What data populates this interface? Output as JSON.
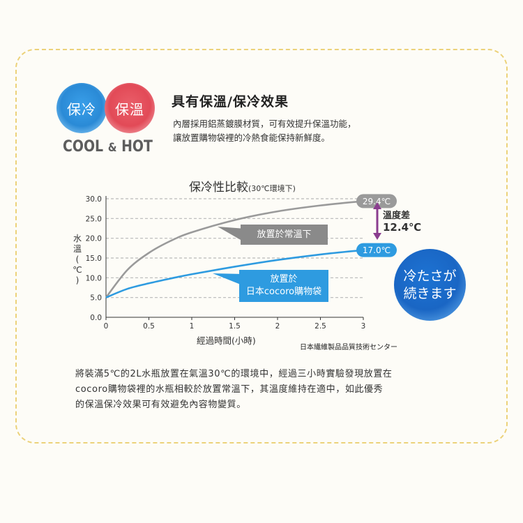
{
  "badges": {
    "cool": "保冷",
    "hot": "保溫",
    "cool_en": "COOL",
    "amp": "&",
    "hot_en": "HOT"
  },
  "header": {
    "title": "具有保溫/保冷效果",
    "desc_line1": "內層採用鋁蒸鍍膜材質，可有效提升保溫功能，",
    "desc_line2": "讓放置購物袋裡的冷熱食能保持新鮮度。"
  },
  "chart_data": {
    "type": "line",
    "title": "保冷性比較",
    "subtitle": "(30℃環境下)",
    "xlabel": "經過時間(小時)",
    "ylabel_chars": [
      "水",
      "溫",
      "(",
      "℃",
      ")"
    ],
    "x_ticks": [
      "0",
      "0.5",
      "1",
      "1.5",
      "2",
      "2.5",
      "3"
    ],
    "y_ticks": [
      "0.0",
      "5.0",
      "10.0",
      "15.0",
      "20.0",
      "25.0",
      "30.0"
    ],
    "xlim": [
      0,
      3
    ],
    "ylim": [
      0,
      30
    ],
    "grid": "horizontal-dashed",
    "series": [
      {
        "name": "放置於常溫下",
        "color": "#9a9a9a",
        "x": [
          0,
          0.25,
          0.5,
          0.75,
          1,
          1.5,
          2,
          2.5,
          3
        ],
        "y": [
          5.0,
          12.0,
          16.3,
          19.3,
          21.5,
          24.6,
          26.8,
          28.3,
          29.4
        ]
      },
      {
        "name": "放置於\n日本cocoro購物袋",
        "color": "#2e9be0",
        "x": [
          0,
          0.25,
          0.5,
          0.75,
          1,
          1.5,
          2,
          2.5,
          3
        ],
        "y": [
          5.0,
          7.2,
          8.6,
          9.8,
          10.9,
          12.8,
          14.5,
          15.9,
          17.0
        ]
      }
    ],
    "end_labels": [
      "29.4℃",
      "17.0℃"
    ],
    "difference": {
      "label": "溫度差",
      "value": "12.4℃"
    },
    "callouts": {
      "normal": "放置於常溫下",
      "bag_line1": "放置於",
      "bag_line2": "日本cocoro購物袋"
    },
    "source": "日本繊維製品品質技術センター"
  },
  "jp_badge": {
    "line1": "冷たさが",
    "line2": "続きます"
  },
  "bottom": {
    "line1": "將裝滿5℃的2L水瓶放置在氣溫30℃的環境中，經過三小時實驗發現放置在",
    "line2": "cocoro購物袋裡的水瓶相較於放置常溫下，其溫度維持在適中，如此優秀",
    "line3": "的保溫保冷效果可有效避免內容物變質。"
  },
  "colors": {
    "cool": "#2a8ad6",
    "hot": "#e24a57",
    "normal_line": "#9a9a9a",
    "bag_line": "#2e9be0",
    "diff_arrow": "#8a3d8f",
    "card_border": "#ecd27a"
  }
}
